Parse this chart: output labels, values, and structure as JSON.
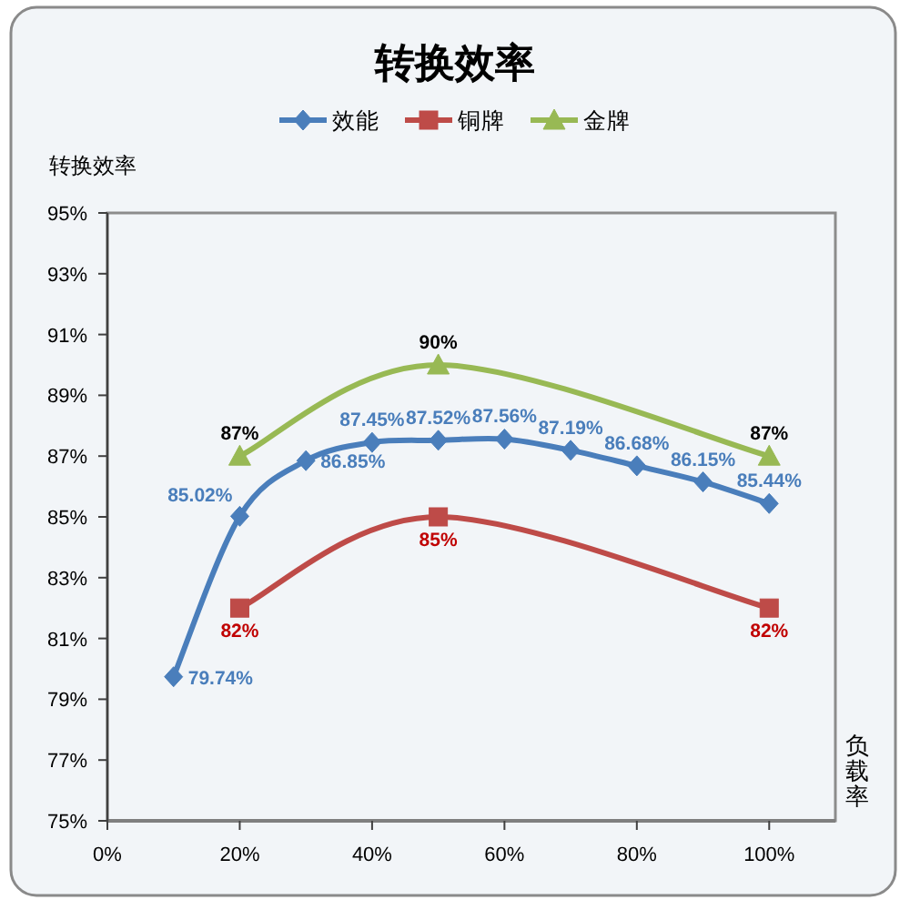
{
  "chart_data": {
    "type": "line",
    "title": "转换效率",
    "ylabel": "转换效率",
    "xlabel": "负载率",
    "xlim": [
      0,
      110
    ],
    "xticks": [
      {
        "value": 0,
        "label": "0%"
      },
      {
        "value": 20,
        "label": "20%"
      },
      {
        "value": 40,
        "label": "40%"
      },
      {
        "value": 60,
        "label": "60%"
      },
      {
        "value": 80,
        "label": "80%"
      },
      {
        "value": 100,
        "label": "100%"
      }
    ],
    "ylim": [
      75,
      95
    ],
    "yticks": [
      {
        "value": 75,
        "label": "75%"
      },
      {
        "value": 77,
        "label": "77%"
      },
      {
        "value": 79,
        "label": "79%"
      },
      {
        "value": 81,
        "label": "81%"
      },
      {
        "value": 83,
        "label": "83%"
      },
      {
        "value": 85,
        "label": "85%"
      },
      {
        "value": 87,
        "label": "87%"
      },
      {
        "value": 89,
        "label": "89%"
      },
      {
        "value": 91,
        "label": "91%"
      },
      {
        "value": 93,
        "label": "93%"
      },
      {
        "value": 95,
        "label": "95%"
      }
    ],
    "legend": "top",
    "series": [
      {
        "name": "效能",
        "color": "#4a7ebb",
        "marker": "diamond",
        "x": [
          10,
          20,
          30,
          40,
          50,
          60,
          70,
          80,
          90,
          100
        ],
        "values": [
          79.74,
          85.02,
          86.85,
          87.45,
          87.52,
          87.56,
          87.19,
          86.68,
          86.15,
          85.44
        ],
        "value_labels": [
          "79.74%",
          "85.02%",
          "86.85%",
          "87.45%",
          "87.52%",
          "87.56%",
          "87.19%",
          "86.68%",
          "86.15%",
          "85.44%"
        ]
      },
      {
        "name": "铜牌",
        "color": "#be4b48",
        "marker": "square",
        "x": [
          20,
          50,
          100
        ],
        "values": [
          82,
          85,
          82
        ],
        "value_labels": [
          "82%",
          "85%",
          "82%"
        ]
      },
      {
        "name": "金牌",
        "color": "#98b954",
        "marker": "triangle",
        "x": [
          20,
          50,
          100
        ],
        "values": [
          87,
          90,
          87
        ],
        "value_labels": [
          "87%",
          "90%",
          "87%"
        ]
      }
    ]
  }
}
